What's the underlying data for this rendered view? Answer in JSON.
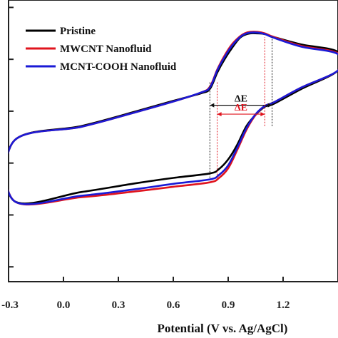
{
  "chart_data": {
    "type": "line",
    "title": "",
    "xlabel": "Potential (V vs. Ag/AgCl)",
    "ylabel": "",
    "xlim": [
      -0.3,
      1.5
    ],
    "x_ticks": [
      -0.3,
      0.0,
      0.3,
      0.6,
      0.9,
      1.2,
      1.5
    ],
    "x_tick_labels": [
      "-0.3",
      "0.0",
      "0.3",
      "0.6",
      "0.9",
      "1.2",
      ""
    ],
    "ylim": [
      0,
      380
    ],
    "y_ticks": [
      20,
      90,
      160,
      230,
      300,
      370
    ],
    "grid": false,
    "legend_position": "top-left",
    "series": [
      {
        "name": "Pristine",
        "color": "#000000",
        "points": [
          [
            -0.27,
            190
          ],
          [
            0.1,
            210
          ],
          [
            0.4,
            230
          ],
          [
            0.6,
            244
          ],
          [
            0.75,
            254
          ],
          [
            0.8,
            260
          ],
          [
            0.84,
            282
          ],
          [
            0.88,
            300
          ],
          [
            0.92,
            315
          ],
          [
            0.96,
            328
          ],
          [
            0.99,
            333
          ],
          [
            1.02,
            335
          ],
          [
            1.06,
            335
          ],
          [
            1.1,
            334
          ],
          [
            1.15,
            330
          ],
          [
            1.3,
            320
          ],
          [
            1.5,
            310
          ],
          [
            1.5,
            285
          ],
          [
            1.3,
            260
          ],
          [
            1.15,
            240
          ],
          [
            1.1,
            236
          ],
          [
            1.05,
            225
          ],
          [
            1.0,
            210
          ],
          [
            0.95,
            185
          ],
          [
            0.9,
            165
          ],
          [
            0.85,
            152
          ],
          [
            0.8,
            146
          ],
          [
            0.6,
            140
          ],
          [
            0.4,
            133
          ],
          [
            0.1,
            121
          ],
          [
            -0.27,
            109
          ]
        ]
      },
      {
        "name": "MWCNT Nanofluid",
        "color": "#e0141e",
        "points": [
          [
            -0.27,
            190
          ],
          [
            0.1,
            209
          ],
          [
            0.4,
            229
          ],
          [
            0.6,
            243
          ],
          [
            0.75,
            255
          ],
          [
            0.8,
            263
          ],
          [
            0.84,
            286
          ],
          [
            0.88,
            305
          ],
          [
            0.92,
            320
          ],
          [
            0.96,
            330
          ],
          [
            0.99,
            335
          ],
          [
            1.02,
            337
          ],
          [
            1.06,
            337
          ],
          [
            1.1,
            335
          ],
          [
            1.15,
            330
          ],
          [
            1.3,
            318
          ],
          [
            1.5,
            308
          ],
          [
            1.5,
            285
          ],
          [
            1.3,
            262
          ],
          [
            1.15,
            242
          ],
          [
            1.1,
            237
          ],
          [
            1.05,
            225
          ],
          [
            1.0,
            205
          ],
          [
            0.95,
            178
          ],
          [
            0.9,
            153
          ],
          [
            0.85,
            140
          ],
          [
            0.8,
            134
          ],
          [
            0.6,
            128
          ],
          [
            0.4,
            122
          ],
          [
            0.1,
            114
          ],
          [
            -0.27,
            109
          ]
        ]
      },
      {
        "name": "MCNT-COOH Nanofluid",
        "color": "#1a1ad6",
        "points": [
          [
            -0.27,
            190
          ],
          [
            0.1,
            209
          ],
          [
            0.4,
            229
          ],
          [
            0.6,
            243
          ],
          [
            0.75,
            255
          ],
          [
            0.8,
            262
          ],
          [
            0.84,
            285
          ],
          [
            0.88,
            303
          ],
          [
            0.92,
            318
          ],
          [
            0.96,
            329
          ],
          [
            0.99,
            334
          ],
          [
            1.02,
            336
          ],
          [
            1.06,
            336
          ],
          [
            1.1,
            334
          ],
          [
            1.15,
            329
          ],
          [
            1.3,
            317
          ],
          [
            1.5,
            307
          ],
          [
            1.5,
            285
          ],
          [
            1.3,
            262
          ],
          [
            1.15,
            242
          ],
          [
            1.1,
            237
          ],
          [
            1.05,
            226
          ],
          [
            1.0,
            207
          ],
          [
            0.95,
            181
          ],
          [
            0.9,
            157
          ],
          [
            0.85,
            144
          ],
          [
            0.8,
            138
          ],
          [
            0.6,
            132
          ],
          [
            0.4,
            125
          ],
          [
            0.1,
            116
          ],
          [
            -0.27,
            109
          ]
        ]
      }
    ],
    "annotations": [
      {
        "text": "ΔE",
        "color": "#111111",
        "x_from": 0.8,
        "x_to": 1.14,
        "y": 238
      },
      {
        "text": "ΔE",
        "color": "#e0141e",
        "x_from": 0.84,
        "x_to": 1.1,
        "y": 226
      }
    ]
  }
}
